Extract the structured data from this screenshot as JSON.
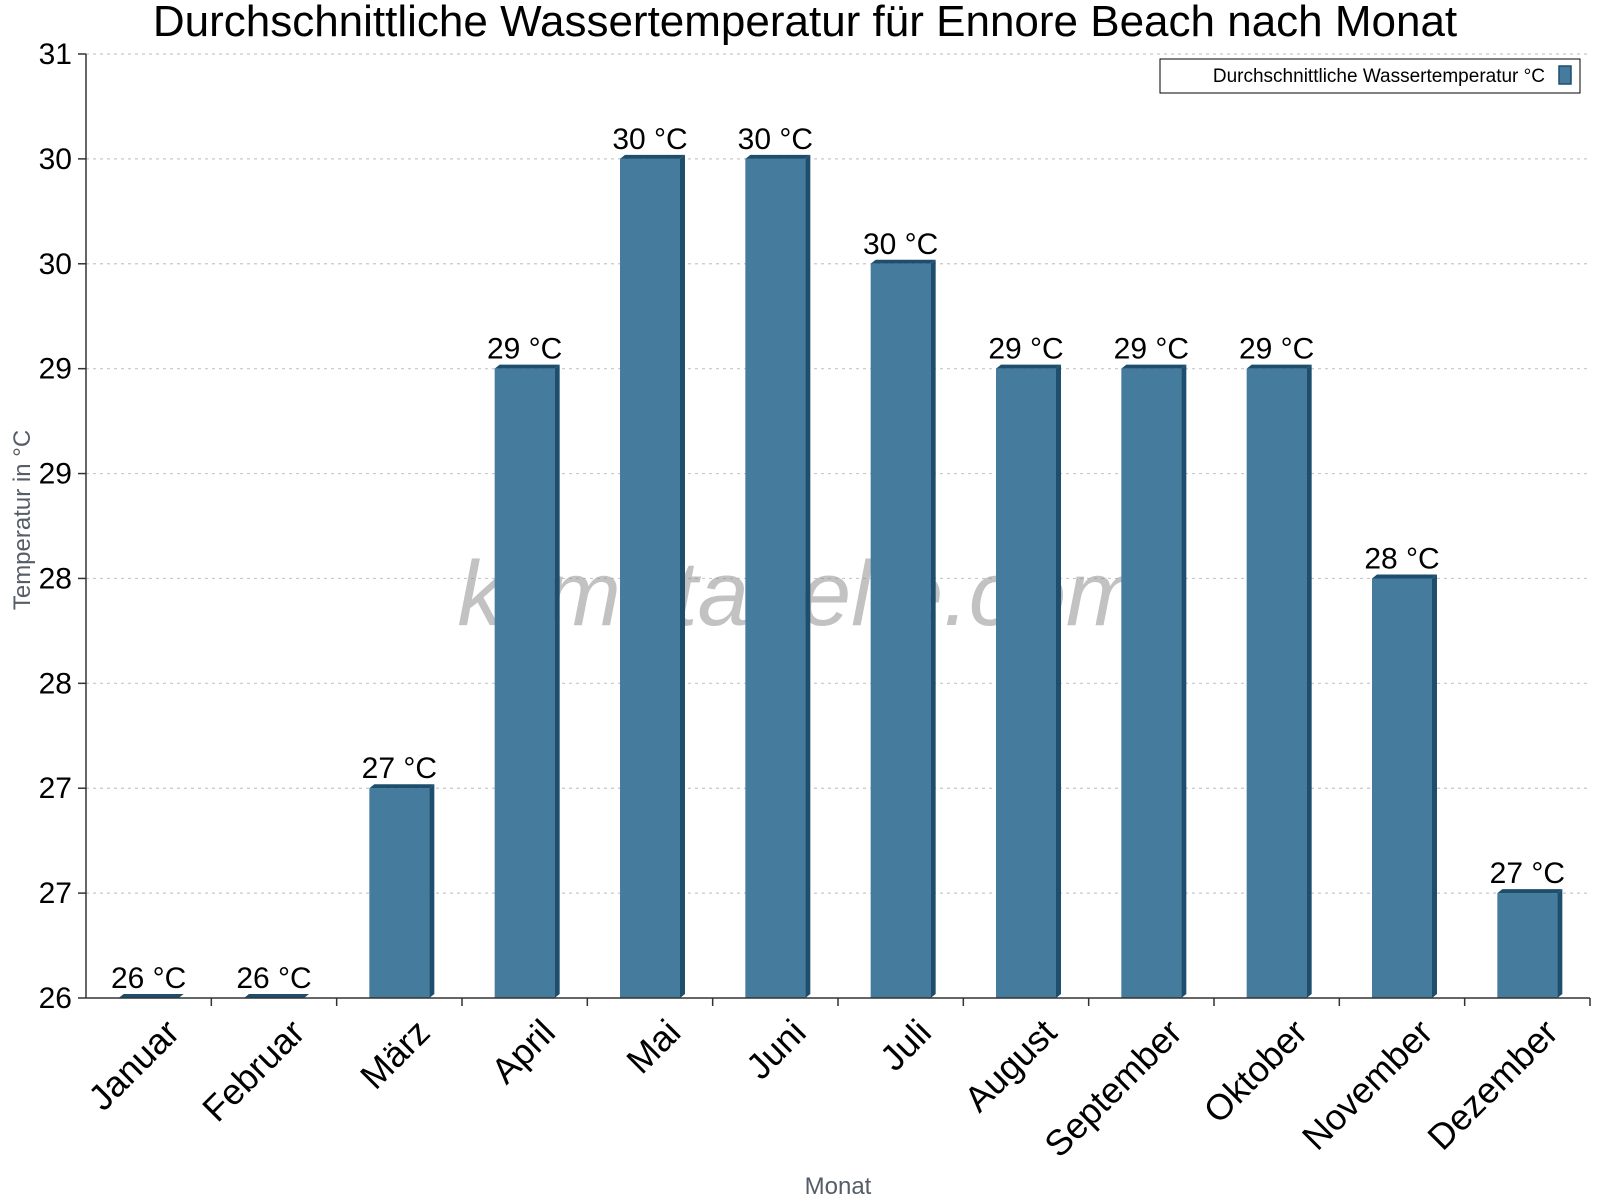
{
  "chart_data": {
    "type": "bar",
    "title": "Durchschnittliche Wassertemperatur für Ennore Beach nach Monat",
    "xlabel": "Monat",
    "ylabel": "Temperatur in °C",
    "categories": [
      "Januar",
      "Februar",
      "März",
      "April",
      "Mai",
      "Juni",
      "Juli",
      "August",
      "September",
      "Oktober",
      "November",
      "Dezember"
    ],
    "series": [
      {
        "name": "Durchschnittliche Wassertemperatur °C",
        "values": [
          26.0,
          26.0,
          27.0,
          29.0,
          30.0,
          30.0,
          29.5,
          29.0,
          29.0,
          29.0,
          28.0,
          26.5
        ],
        "labels": [
          "26 °C",
          "26 °C",
          "27 °C",
          "29 °C",
          "30 °C",
          "30 °C",
          "30 °C",
          "29 °C",
          "29 °C",
          "29 °C",
          "28 °C",
          "27 °C"
        ]
      }
    ],
    "ylim": [
      26,
      30.5
    ],
    "yticks": [
      26,
      26.5,
      27,
      27.5,
      28,
      28.5,
      29,
      29.5,
      30,
      30.5
    ],
    "ytick_labels": [
      "26",
      "27",
      "27",
      "28",
      "28",
      "29",
      "29",
      "30",
      "30",
      "31"
    ],
    "grid": true,
    "legend_position": "top-right",
    "watermark": "klimatabelle.com",
    "colors": {
      "bar": "#457b9d",
      "bar_side": "#1d4e6e",
      "bar_top": "#1d4e6e",
      "grid": "#c8c8c8",
      "axis": "#333333"
    }
  }
}
